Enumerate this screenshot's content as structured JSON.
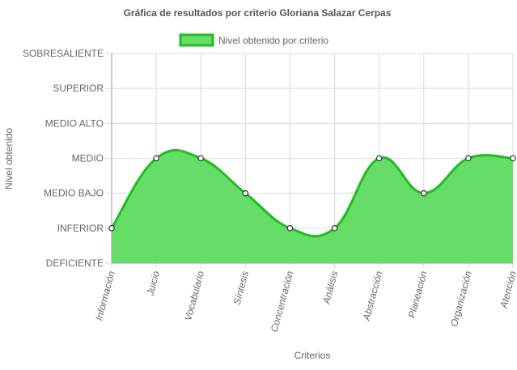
{
  "chart_data": {
    "type": "area",
    "title": "Gráfica de resultados por criterio Gloriana Salazar Cerpas",
    "xlabel": "Criterios",
    "ylabel": "Nivel obtenido",
    "y_levels": [
      "DEFICIENTE",
      "INFERIOR",
      "MEDIO BAJO",
      "MEDIO",
      "MEDIO ALTO",
      "SUPERIOR",
      "SOBRESALIENTE"
    ],
    "ylim": [
      0,
      6
    ],
    "categories": [
      "Información",
      "Juicio",
      "Vocabulario",
      "Síntesis",
      "Concentración",
      "Análisis",
      "Abstracción",
      "Planeación",
      "Organización",
      "Atención"
    ],
    "series": [
      {
        "name": "Nivel obtenido por criterio",
        "values": [
          1,
          3,
          3,
          2,
          1,
          1,
          3,
          2,
          3,
          3
        ]
      }
    ],
    "legend_position": "top",
    "grid": true,
    "colors": {
      "fill": "#66dd66",
      "stroke": "#22bb22",
      "point_fill": "#ffffff",
      "point_stroke": "#333333",
      "grid": "#d9d9d9",
      "axis": "#999999"
    }
  }
}
